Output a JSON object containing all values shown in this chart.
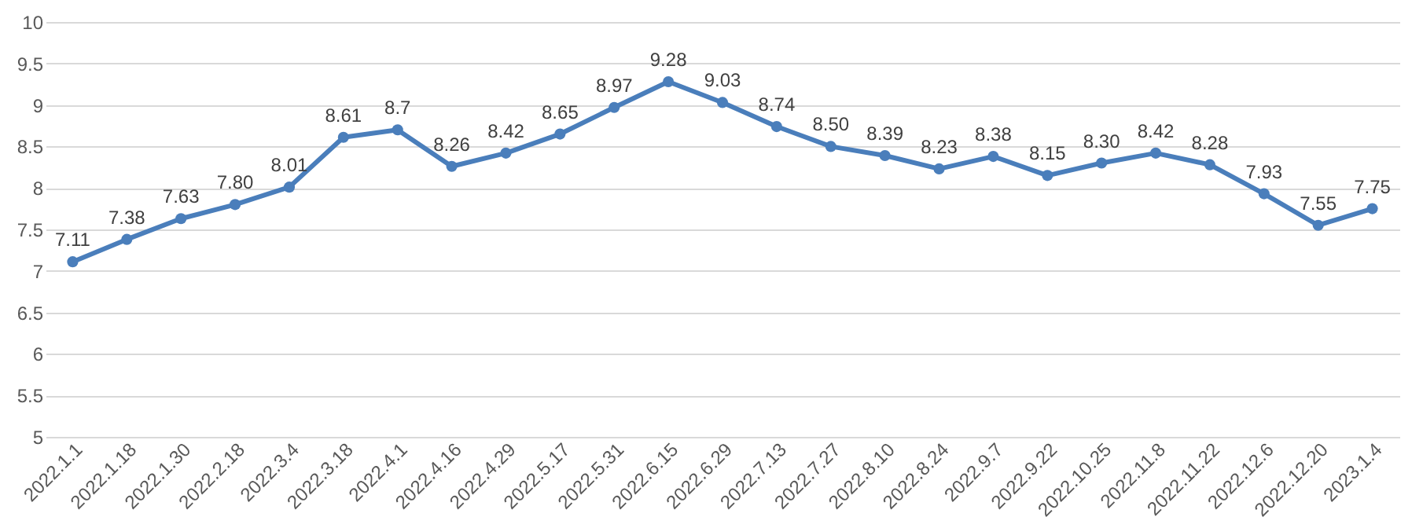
{
  "chart_data": {
    "type": "line",
    "categories": [
      "2022.1.1",
      "2022.1.18",
      "2022.1.30",
      "2022.2.18",
      "2022.3.4",
      "2022.3.18",
      "2022.4.1",
      "2022.4.16",
      "2022.4.29",
      "2022.5.17",
      "2022.5.31",
      "2022.6.15",
      "2022.6.29",
      "2022.7.13",
      "2022.7.27",
      "2022.8.10",
      "2022.8.24",
      "2022.9.7",
      "2022.9.22",
      "2022.10.25",
      "2022.11.8",
      "2022.11.22",
      "2022.12.6",
      "2022.12.20",
      "2023.1.4"
    ],
    "series": [
      {
        "color": "#4a7ebb",
        "values": [
          7.11,
          7.38,
          7.63,
          7.8,
          8.01,
          8.61,
          8.7,
          8.26,
          8.42,
          8.65,
          8.97,
          9.28,
          9.03,
          8.74,
          8.5,
          8.39,
          8.23,
          8.38,
          8.15,
          8.3,
          8.42,
          8.28,
          7.93,
          7.55,
          7.75
        ],
        "value_labels": [
          "7.11",
          "7.38",
          "7.63",
          "7.80",
          "8.01",
          "8.61",
          "8.7",
          "8.26",
          "8.42",
          "8.65",
          "8.97",
          "9.28",
          "9.03",
          "8.74",
          "8.50",
          "8.39",
          "8.23",
          "8.38",
          "8.15",
          "8.30",
          "8.42",
          "8.28",
          "7.93",
          "7.55",
          "7.75"
        ]
      }
    ],
    "ylim": [
      5,
      10
    ],
    "yticks": [
      5,
      5.5,
      6,
      6.5,
      7,
      7.5,
      8,
      8.5,
      9,
      9.5,
      10
    ],
    "grid": "y",
    "marker": "circle",
    "line_style": "solid"
  }
}
